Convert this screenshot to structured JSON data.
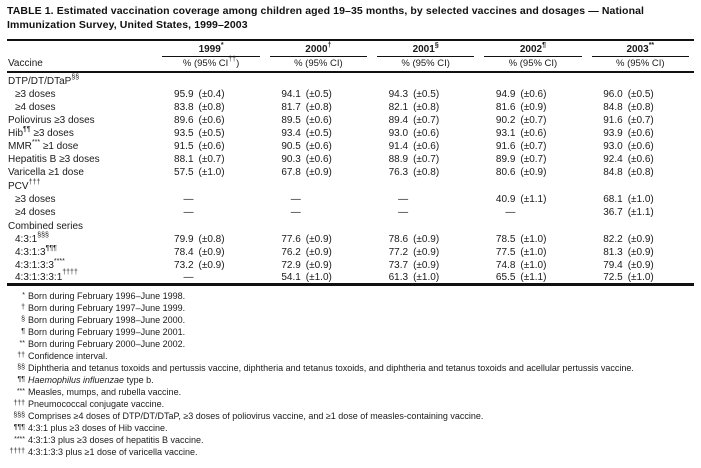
{
  "title": {
    "text": "TABLE 1. Estimated vaccination coverage among children aged 19–35 months, by selected vaccines and dosages — National Immunization Survey, United States, 1999–2003"
  },
  "table": {
    "vaccine_header": "Vaccine",
    "no_data": "—",
    "years": [
      {
        "label": "1999",
        "sup": "*",
        "subheader_pre": "% (95% CI",
        "subheader_sup": "††",
        "subheader_post": ")"
      },
      {
        "label": "2000",
        "sup": "†",
        "subheader_pre": "% (95% CI)",
        "subheader_sup": "",
        "subheader_post": ""
      },
      {
        "label": "2001",
        "sup": "§",
        "subheader_pre": "% (95% CI)",
        "subheader_sup": "",
        "subheader_post": ""
      },
      {
        "label": "2002",
        "sup": "¶",
        "subheader_pre": "% (95% CI)",
        "subheader_sup": "",
        "subheader_post": ""
      },
      {
        "label": "2003",
        "sup": "**",
        "subheader_pre": "% (95% CI)",
        "subheader_sup": "",
        "subheader_post": ""
      }
    ],
    "rows": [
      {
        "type": "section",
        "label": "DTP/DT/DTaP",
        "sup": "§§"
      },
      {
        "type": "data",
        "indent": true,
        "label": "≥3 doses",
        "values": [
          [
            "95.9",
            "(±0.4)"
          ],
          [
            "94.1",
            "(±0.5)"
          ],
          [
            "94.3",
            "(±0.5)"
          ],
          [
            "94.9",
            "(±0.6)"
          ],
          [
            "96.0",
            "(±0.5)"
          ]
        ]
      },
      {
        "type": "data",
        "indent": true,
        "label": "≥4 doses",
        "values": [
          [
            "83.8",
            "(±0.8)"
          ],
          [
            "81.7",
            "(±0.8)"
          ],
          [
            "82.1",
            "(±0.8)"
          ],
          [
            "81.6",
            "(±0.9)"
          ],
          [
            "84.8",
            "(±0.8)"
          ]
        ]
      },
      {
        "type": "data",
        "label": "Poliovirus ≥3 doses",
        "values": [
          [
            "89.6",
            "(±0.6)"
          ],
          [
            "89.5",
            "(±0.6)"
          ],
          [
            "89.4",
            "(±0.7)"
          ],
          [
            "90.2",
            "(±0.7)"
          ],
          [
            "91.6",
            "(±0.7)"
          ]
        ]
      },
      {
        "type": "data",
        "label": "Hib",
        "sup": "¶¶",
        "label2": " ≥3 doses",
        "values": [
          [
            "93.5",
            "(±0.5)"
          ],
          [
            "93.4",
            "(±0.5)"
          ],
          [
            "93.0",
            "(±0.6)"
          ],
          [
            "93.1",
            "(±0.6)"
          ],
          [
            "93.9",
            "(±0.6)"
          ]
        ]
      },
      {
        "type": "data",
        "label": "MMR",
        "sup": "***",
        "label2": " ≥1 dose",
        "values": [
          [
            "91.5",
            "(±0.6)"
          ],
          [
            "90.5",
            "(±0.6)"
          ],
          [
            "91.4",
            "(±0.6)"
          ],
          [
            "91.6",
            "(±0.7)"
          ],
          [
            "93.0",
            "(±0.6)"
          ]
        ]
      },
      {
        "type": "data",
        "label": "Hepatitis B ≥3 doses",
        "values": [
          [
            "88.1",
            "(±0.7)"
          ],
          [
            "90.3",
            "(±0.6)"
          ],
          [
            "88.9",
            "(±0.7)"
          ],
          [
            "89.9",
            "(±0.7)"
          ],
          [
            "92.4",
            "(±0.6)"
          ]
        ]
      },
      {
        "type": "data",
        "label": "Varicella ≥1 dose",
        "values": [
          [
            "57.5",
            "(±1.0)"
          ],
          [
            "67.8",
            "(±0.9)"
          ],
          [
            "76.3",
            "(±0.8)"
          ],
          [
            "80.6",
            "(±0.9)"
          ],
          [
            "84.8",
            "(±0.8)"
          ]
        ]
      },
      {
        "type": "section",
        "label": "PCV",
        "sup": "†††"
      },
      {
        "type": "data",
        "indent": true,
        "label": "≥3 doses",
        "values": [
          null,
          null,
          null,
          [
            "40.9",
            "(±1.1)"
          ],
          [
            "68.1",
            "(±1.0)"
          ]
        ]
      },
      {
        "type": "data",
        "indent": true,
        "label": "≥4 doses",
        "values": [
          null,
          null,
          null,
          null,
          [
            "36.7",
            "(±1.1)"
          ]
        ]
      },
      {
        "type": "section",
        "label": "Combined series"
      },
      {
        "type": "data",
        "indent": true,
        "label": "4:3:1",
        "sup": "§§§",
        "values": [
          [
            "79.9",
            "(±0.8)"
          ],
          [
            "77.6",
            "(±0.9)"
          ],
          [
            "78.6",
            "(±0.9)"
          ],
          [
            "78.5",
            "(±1.0)"
          ],
          [
            "82.2",
            "(±0.9)"
          ]
        ]
      },
      {
        "type": "data",
        "indent": true,
        "label": "4:3:1:3",
        "sup": "¶¶¶",
        "values": [
          [
            "78.4",
            "(±0.9)"
          ],
          [
            "76.2",
            "(±0.9)"
          ],
          [
            "77.2",
            "(±0.9)"
          ],
          [
            "77.5",
            "(±1.0)"
          ],
          [
            "81.3",
            "(±0.9)"
          ]
        ]
      },
      {
        "type": "data",
        "indent": true,
        "label": "4:3:1:3:3",
        "sup": "****",
        "values": [
          [
            "73.2",
            "(±0.9)"
          ],
          [
            "72.9",
            "(±0.9)"
          ],
          [
            "73.7",
            "(±0.9)"
          ],
          [
            "74.8",
            "(±1.0)"
          ],
          [
            "79.4",
            "(±0.9)"
          ]
        ]
      },
      {
        "type": "data",
        "indent": true,
        "label": "4:3:1:3:3:1",
        "sup": "††††",
        "values": [
          null,
          [
            "54.1",
            "(±1.0)"
          ],
          [
            "61.3",
            "(±1.0)"
          ],
          [
            "65.5",
            "(±1.1)"
          ],
          [
            "72.5",
            "(±1.0)"
          ]
        ]
      }
    ]
  },
  "footnotes": [
    {
      "marker": "*",
      "text": "Born during February 1996–June 1998."
    },
    {
      "marker": "†",
      "text": "Born during February 1997–June 1999."
    },
    {
      "marker": "§",
      "text": "Born during February 1998–June 2000."
    },
    {
      "marker": "¶",
      "text": "Born during February 1999–June 2001."
    },
    {
      "marker": "**",
      "text": "Born during February 2000–June 2002."
    },
    {
      "marker": "††",
      "text": "Confidence interval."
    },
    {
      "marker": "§§",
      "text": "Diphtheria and tetanus toxoids and pertussis vaccine, diphtheria and tetanus toxoids, and diphtheria and tetanus toxoids and acellular pertussis vaccine."
    },
    {
      "marker": "¶¶",
      "italic": "Haemophilus influenzae",
      "text": " type b."
    },
    {
      "marker": "***",
      "text": "Measles, mumps, and rubella vaccine."
    },
    {
      "marker": "†††",
      "text": "Pneumococcal conjugate vaccine."
    },
    {
      "marker": "§§§",
      "text": "Comprises ≥4 doses of DTP/DT/DTaP, ≥3 doses of poliovirus vaccine, and ≥1 dose of measles-containing vaccine."
    },
    {
      "marker": "¶¶¶",
      "text": "4:3:1 plus ≥3 doses of Hib vaccine."
    },
    {
      "marker": "****",
      "text": "4:3:1:3 plus ≥3 doses of hepatitis B vaccine."
    },
    {
      "marker": "††††",
      "text": "4:3:1:3:3 plus ≥1 dose of varicella vaccine."
    }
  ]
}
